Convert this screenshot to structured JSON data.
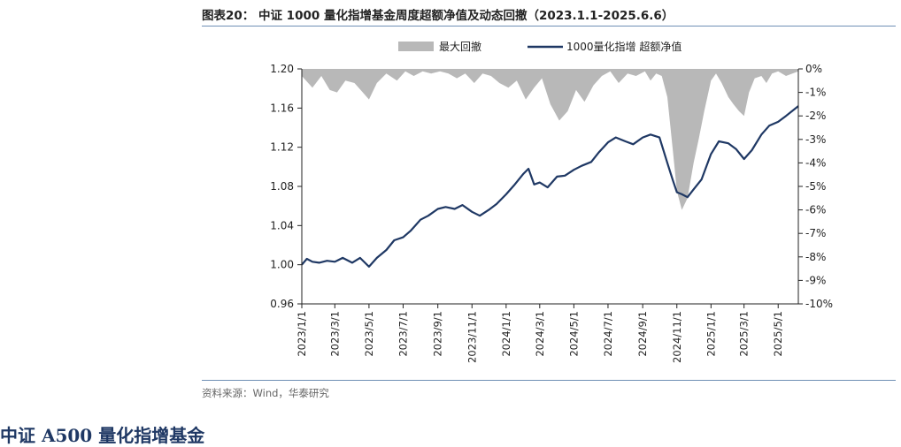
{
  "figure": {
    "title": "图表20： 中证 1000 量化指增基金周度超额净值及动态回撤（2023.1.1-2025.6.6）",
    "source": "资料来源：Wind，华泰研究",
    "next_section_title": "中证 A500 量化指增基金"
  },
  "chart_data": {
    "type": "line",
    "title": "",
    "xlabel": "",
    "ylabel": "",
    "ylim": [
      0.96,
      1.2
    ],
    "y2lim": [
      -10,
      0
    ],
    "yticks": [
      "1.20",
      "1.16",
      "1.12",
      "1.08",
      "1.04",
      "1.00",
      "0.96"
    ],
    "y2ticks": [
      "0%",
      "-1%",
      "-2%",
      "-3%",
      "-4%",
      "-5%",
      "-6%",
      "-7%",
      "-8%",
      "-9%",
      "-10%"
    ],
    "xticks": [
      "2023/1/1",
      "2023/3/1",
      "2023/5/1",
      "2023/7/1",
      "2023/9/1",
      "2023/11/1",
      "2024/1/1",
      "2024/3/1",
      "2024/5/1",
      "2024/7/1",
      "2024/9/1",
      "2024/11/1",
      "2025/1/1",
      "2025/3/1",
      "2025/5/1"
    ],
    "x_range": [
      "2023/1/1",
      "2025/6/6"
    ],
    "grid": false,
    "legend_position": "top-center",
    "series": [
      {
        "name": "最大回撤",
        "type": "area",
        "axis": "right",
        "color": "#b8b8b8",
        "x": [
          "2023/1/1",
          "2023/1/20",
          "2023/2/5",
          "2023/2/20",
          "2023/3/5",
          "2023/3/20",
          "2023/4/5",
          "2023/4/20",
          "2023/5/1",
          "2023/5/15",
          "2023/6/1",
          "2023/6/20",
          "2023/7/5",
          "2023/7/20",
          "2023/8/5",
          "2023/8/20",
          "2023/9/5",
          "2023/9/20",
          "2023/10/5",
          "2023/10/20",
          "2023/11/5",
          "2023/11/20",
          "2023/12/5",
          "2023/12/20",
          "2024/1/5",
          "2024/1/20",
          "2024/2/5",
          "2024/2/20",
          "2024/3/5",
          "2024/3/20",
          "2024/4/5",
          "2024/4/20",
          "2024/5/5",
          "2024/5/20",
          "2024/6/5",
          "2024/6/20",
          "2024/7/5",
          "2024/7/20",
          "2024/8/5",
          "2024/8/20",
          "2024/9/5",
          "2024/9/15",
          "2024/9/25",
          "2024/10/5",
          "2024/10/15",
          "2024/10/25",
          "2024/11/1",
          "2024/11/10",
          "2024/11/20",
          "2024/12/1",
          "2024/12/10",
          "2024/12/20",
          "2025/1/1",
          "2025/1/10",
          "2025/1/20",
          "2025/2/1",
          "2025/2/10",
          "2025/2/20",
          "2025/3/1",
          "2025/3/10",
          "2025/3/20",
          "2025/4/1",
          "2025/4/10",
          "2025/4/20",
          "2025/5/1",
          "2025/5/15",
          "2025/6/6"
        ],
        "values": [
          -0.3,
          -0.8,
          -0.3,
          -0.9,
          -1.0,
          -0.5,
          -0.6,
          -1.0,
          -1.3,
          -0.6,
          -0.2,
          -0.5,
          -0.1,
          -0.3,
          -0.1,
          -0.2,
          -0.1,
          -0.2,
          -0.4,
          -0.2,
          -0.6,
          -0.2,
          -0.3,
          -0.6,
          -0.8,
          -0.5,
          -1.3,
          -0.8,
          -0.4,
          -1.5,
          -2.2,
          -1.8,
          -0.9,
          -1.4,
          -0.7,
          -0.3,
          -0.1,
          -0.6,
          -0.2,
          -0.3,
          -0.1,
          -0.5,
          -0.2,
          -0.3,
          -1.2,
          -3.5,
          -5.2,
          -6.0,
          -5.5,
          -4.0,
          -3.0,
          -1.8,
          -0.5,
          -0.2,
          -0.6,
          -1.2,
          -1.5,
          -1.8,
          -2.0,
          -1.0,
          -0.4,
          -0.3,
          -0.6,
          -0.2,
          -0.1,
          -0.3,
          -0.1
        ]
      },
      {
        "name": "1000量化指增 超额净值",
        "type": "line",
        "axis": "left",
        "color": "#1f3864",
        "x": [
          "2023/1/1",
          "2023/1/10",
          "2023/1/20",
          "2023/2/1",
          "2023/2/15",
          "2023/3/1",
          "2023/3/15",
          "2023/4/1",
          "2023/4/15",
          "2023/5/1",
          "2023/5/15",
          "2023/6/1",
          "2023/6/15",
          "2023/7/1",
          "2023/7/15",
          "2023/8/1",
          "2023/8/15",
          "2023/9/1",
          "2023/9/15",
          "2023/10/1",
          "2023/10/15",
          "2023/11/1",
          "2023/11/15",
          "2023/12/1",
          "2023/12/15",
          "2024/1/1",
          "2024/1/15",
          "2024/2/1",
          "2024/2/10",
          "2024/2/20",
          "2024/3/1",
          "2024/3/15",
          "2024/4/1",
          "2024/4/15",
          "2024/5/1",
          "2024/5/15",
          "2024/6/1",
          "2024/6/15",
          "2024/7/1",
          "2024/7/15",
          "2024/8/1",
          "2024/8/15",
          "2024/9/1",
          "2024/9/15",
          "2024/10/1",
          "2024/10/15",
          "2024/10/25",
          "2024/11/1",
          "2024/11/10",
          "2024/11/20",
          "2024/12/1",
          "2024/12/15",
          "2025/1/1",
          "2025/1/15",
          "2025/2/1",
          "2025/2/15",
          "2025/3/1",
          "2025/3/15",
          "2025/4/1",
          "2025/4/15",
          "2025/5/1",
          "2025/5/15",
          "2025/6/6"
        ],
        "values": [
          1.0,
          1.006,
          1.003,
          1.002,
          1.004,
          1.003,
          1.007,
          1.002,
          1.007,
          0.998,
          1.007,
          1.015,
          1.025,
          1.028,
          1.035,
          1.046,
          1.05,
          1.057,
          1.059,
          1.057,
          1.061,
          1.054,
          1.05,
          1.056,
          1.062,
          1.072,
          1.081,
          1.093,
          1.098,
          1.082,
          1.084,
          1.079,
          1.09,
          1.091,
          1.097,
          1.101,
          1.105,
          1.115,
          1.125,
          1.13,
          1.126,
          1.123,
          1.13,
          1.133,
          1.13,
          1.104,
          1.086,
          1.074,
          1.072,
          1.069,
          1.077,
          1.087,
          1.113,
          1.126,
          1.124,
          1.118,
          1.108,
          1.117,
          1.133,
          1.142,
          1.146,
          1.152,
          1.162
        ]
      }
    ]
  }
}
